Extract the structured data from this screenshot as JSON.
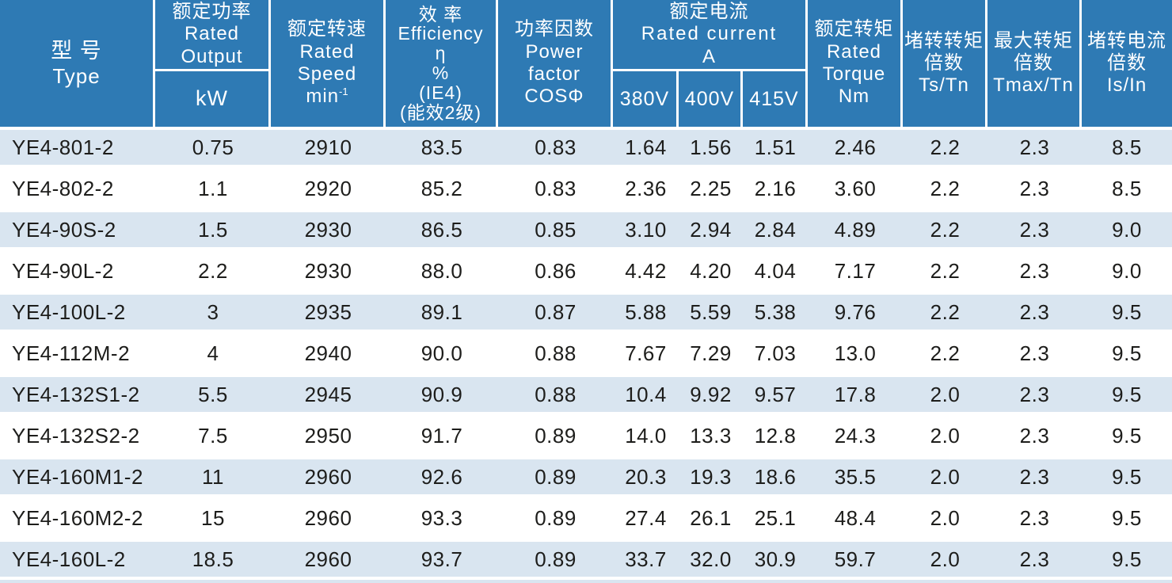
{
  "colors": {
    "header_bg": "#2e7ab4",
    "header_text": "#ffffff",
    "row_alt_bg": "#d9e5f0",
    "row_bg": "#ffffff",
    "data_text": "#1d1d1b"
  },
  "table": {
    "header": {
      "type": {
        "zh": "型 号",
        "en": "Type"
      },
      "rated_output": {
        "zh": "额定功率",
        "en_line1": "Rated",
        "en_line2": "Output",
        "unit": "kW"
      },
      "rated_speed": {
        "zh": "额定转速",
        "en_line1": "Rated",
        "en_line2": "Speed",
        "unit_base": "min",
        "unit_sup": "-1"
      },
      "efficiency": {
        "zh": "效 率",
        "en": "Efficiency",
        "symbol": "η",
        "percent": "%",
        "note1": "(IE4)",
        "note2": "(能效2级)"
      },
      "power_factor": {
        "zh": "功率因数",
        "en_line1": "Power",
        "en_line2": "factor",
        "symbol": "COSΦ"
      },
      "rated_current": {
        "zh": "额定电流",
        "en": "Rated current",
        "unit": "A",
        "voltages": [
          "380V",
          "400V",
          "415V"
        ]
      },
      "rated_torque": {
        "zh": "额定转矩",
        "en_line1": "Rated",
        "en_line2": "Torque",
        "unit": "Nm"
      },
      "locked_rotor_torque": {
        "zh_line1": "堵转转矩",
        "zh_line2": "倍数",
        "symbol": "Ts/Tn"
      },
      "max_torque": {
        "zh_line1": "最大转矩",
        "zh_line2": "倍数",
        "symbol": "Tmax/Tn"
      },
      "locked_rotor_current": {
        "zh_line1": "堵转电流",
        "zh_line2": "倍数",
        "symbol": "Is/In"
      }
    },
    "rows": [
      [
        "YE4-801-2",
        "0.75",
        "2910",
        "83.5",
        "0.83",
        "1.64",
        "1.56",
        "1.51",
        "2.46",
        "2.2",
        "2.3",
        "8.5"
      ],
      [
        "YE4-802-2",
        "1.1",
        "2920",
        "85.2",
        "0.83",
        "2.36",
        "2.25",
        "2.16",
        "3.60",
        "2.2",
        "2.3",
        "8.5"
      ],
      [
        "YE4-90S-2",
        "1.5",
        "2930",
        "86.5",
        "0.85",
        "3.10",
        "2.94",
        "2.84",
        "4.89",
        "2.2",
        "2.3",
        "9.0"
      ],
      [
        "YE4-90L-2",
        "2.2",
        "2930",
        "88.0",
        "0.86",
        "4.42",
        "4.20",
        "4.04",
        "7.17",
        "2.2",
        "2.3",
        "9.0"
      ],
      [
        "YE4-100L-2",
        "3",
        "2935",
        "89.1",
        "0.87",
        "5.88",
        "5.59",
        "5.38",
        "9.76",
        "2.2",
        "2.3",
        "9.5"
      ],
      [
        "YE4-112M-2",
        "4",
        "2940",
        "90.0",
        "0.88",
        "7.67",
        "7.29",
        "7.03",
        "13.0",
        "2.2",
        "2.3",
        "9.5"
      ],
      [
        "YE4-132S1-2",
        "5.5",
        "2945",
        "90.9",
        "0.88",
        "10.4",
        "9.92",
        "9.57",
        "17.8",
        "2.0",
        "2.3",
        "9.5"
      ],
      [
        "YE4-132S2-2",
        "7.5",
        "2950",
        "91.7",
        "0.89",
        "14.0",
        "13.3",
        "12.8",
        "24.3",
        "2.0",
        "2.3",
        "9.5"
      ],
      [
        "YE4-160M1-2",
        "11",
        "2960",
        "92.6",
        "0.89",
        "20.3",
        "19.3",
        "18.6",
        "35.5",
        "2.0",
        "2.3",
        "9.5"
      ],
      [
        "YE4-160M2-2",
        "15",
        "2960",
        "93.3",
        "0.89",
        "27.4",
        "26.1",
        "25.1",
        "48.4",
        "2.0",
        "2.3",
        "9.5"
      ],
      [
        "YE4-160L-2",
        "18.5",
        "2960",
        "93.7",
        "0.89",
        "33.7",
        "32.0",
        "30.9",
        "59.7",
        "2.0",
        "2.3",
        "9.5"
      ]
    ]
  }
}
